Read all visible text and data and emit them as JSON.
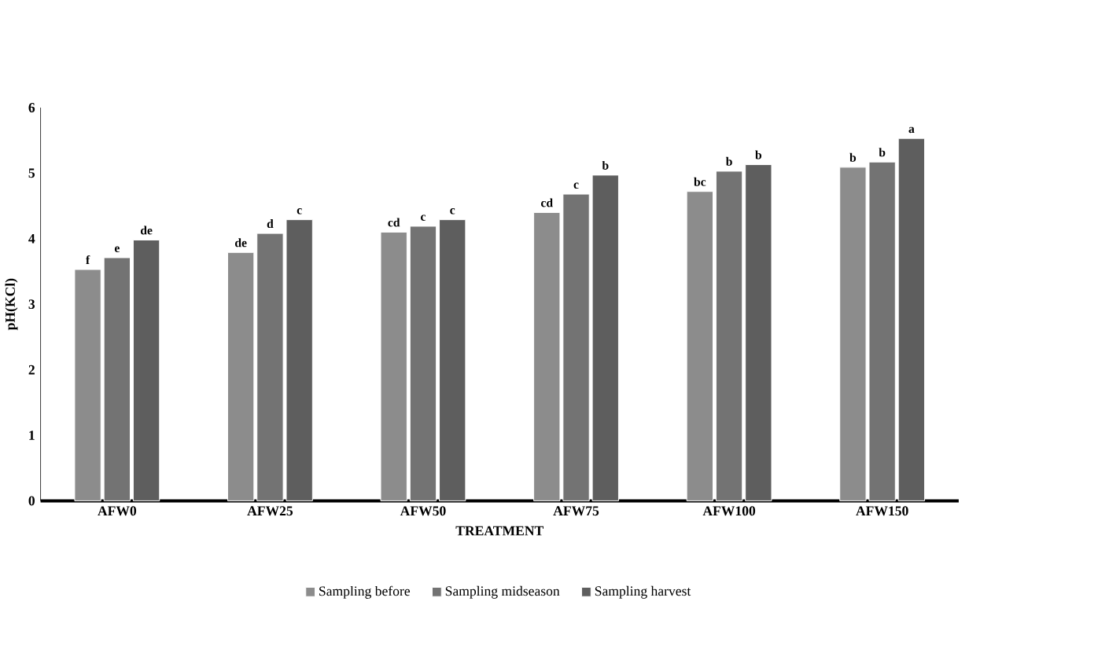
{
  "chart_data": {
    "type": "bar",
    "xlabel": "TREATMENT",
    "ylabel": "pH(KCl)",
    "categories": [
      "AFW0",
      "AFW25",
      "AFW50",
      "AFW75",
      "AFW100",
      "AFW150"
    ],
    "ylim": [
      0,
      6
    ],
    "yticks": [
      0,
      1,
      2,
      3,
      4,
      5,
      6
    ],
    "grid": false,
    "legend": "bottom",
    "series": [
      {
        "name": "Sampling before",
        "color": "#8c8c8c",
        "values": [
          3.53,
          3.79,
          4.1,
          4.4,
          4.72,
          5.09
        ],
        "value_labels": [
          "f",
          "de",
          "cd",
          "cd",
          "bc",
          "b"
        ]
      },
      {
        "name": "Sampling midseason",
        "color": "#737373",
        "values": [
          3.71,
          4.08,
          4.19,
          4.68,
          5.03,
          5.17
        ],
        "value_labels": [
          "e",
          "d",
          "c",
          "c",
          "b",
          "b"
        ]
      },
      {
        "name": "Sampling harvest",
        "color": "#5e5e5e",
        "values": [
          3.98,
          4.29,
          4.29,
          4.97,
          5.13,
          5.53
        ],
        "value_labels": [
          "de",
          "c",
          "c",
          "b",
          "b",
          "a"
        ]
      }
    ]
  }
}
